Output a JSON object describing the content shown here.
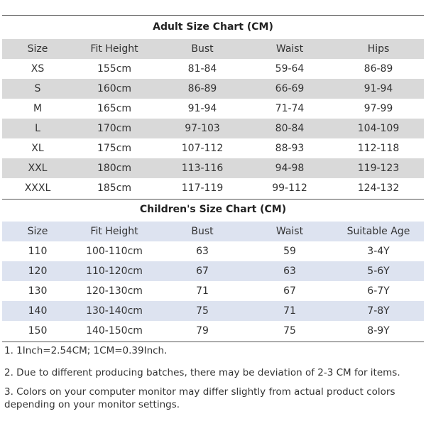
{
  "adult": {
    "title": "Adult Size Chart (CM)",
    "header": [
      "Size",
      "Fit Height",
      "Bust",
      "Waist",
      "Hips"
    ],
    "rows": [
      [
        "XS",
        "155cm",
        "81-84",
        "59-64",
        "86-89"
      ],
      [
        "S",
        "160cm",
        "86-89",
        "66-69",
        "91-94"
      ],
      [
        "M",
        "165cm",
        "91-94",
        "71-74",
        "97-99"
      ],
      [
        "L",
        "170cm",
        "97-103",
        "80-84",
        "104-109"
      ],
      [
        "XL",
        "175cm",
        "107-112",
        "88-93",
        "112-118"
      ],
      [
        "XXL",
        "180cm",
        "113-116",
        "94-98",
        "119-123"
      ],
      [
        "XXXL",
        "185cm",
        "117-119",
        "99-112",
        "124-132"
      ]
    ]
  },
  "children": {
    "title": "Children's Size Chart (CM)",
    "header": [
      "Size",
      "Fit Height",
      "Bust",
      "Waist",
      "Suitable Age"
    ],
    "rows": [
      [
        "110",
        "100-110cm",
        "63",
        "59",
        "3-4Y"
      ],
      [
        "120",
        "110-120cm",
        "67",
        "63",
        "5-6Y"
      ],
      [
        "130",
        "120-130cm",
        "71",
        "67",
        "6-7Y"
      ],
      [
        "140",
        "130-140cm",
        "75",
        "71",
        "7-8Y"
      ],
      [
        "150",
        "140-150cm",
        "79",
        "75",
        "8-9Y"
      ]
    ]
  },
  "notes": [
    "1. 1Inch=2.54CM; 1CM=0.39Inch.",
    "2. Due to different producing batches, there may be deviation of 2-3 CM for items.",
    "3. Colors on your computer monitor may differ slightly from actual product colors depending on your monitor settings."
  ]
}
